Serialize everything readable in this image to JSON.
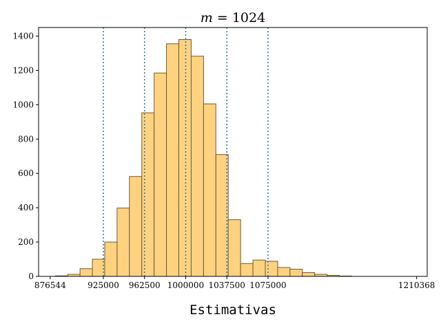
{
  "chart_data": {
    "type": "bar",
    "title": "m = 1024",
    "title_var": "m",
    "title_rest": " = 1024",
    "xlabel": "Estimativas",
    "ylabel": "",
    "xlim": [
      866000,
      1220000
    ],
    "ylim": [
      0,
      1450
    ],
    "bin_width": 11250,
    "bin_start": 870000,
    "values": [
      0,
      3,
      12,
      45,
      100,
      200,
      398,
      582,
      953,
      1185,
      1355,
      1380,
      1283,
      1005,
      710,
      330,
      75,
      95,
      88,
      52,
      42,
      22,
      12,
      6,
      2,
      0,
      0,
      0,
      0,
      0
    ],
    "bar_color": "#ffd27f",
    "bar_edge_color": "#6b5a3e",
    "x_ticks": [
      876544,
      925000,
      962500,
      1000000,
      1037500,
      1075000,
      1210368
    ],
    "x_tick_labels": [
      "876544",
      "925000",
      "962500",
      "1000000",
      "1037500",
      "1075000",
      "1210368"
    ],
    "y_ticks": [
      0,
      200,
      400,
      600,
      800,
      1000,
      1200,
      1400
    ],
    "y_tick_labels": [
      "0",
      "200",
      "400",
      "600",
      "800",
      "1000",
      "1200",
      "1400"
    ],
    "vlines": [
      925000,
      962500,
      1000000,
      1037500,
      1075000
    ],
    "vline_color": "#1f77b4",
    "grid": false,
    "legend": "none"
  }
}
